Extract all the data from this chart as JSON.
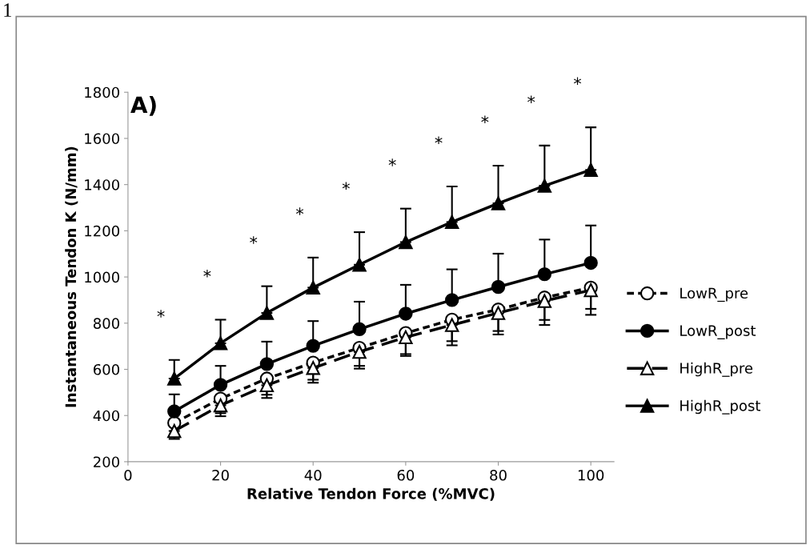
{
  "chart_data": {
    "type": "line",
    "xlabel": "Relative Tendon Force (%MVC)",
    "ylabel": "Instantaneous Tendon K (N/mm)",
    "x": [
      10,
      20,
      30,
      40,
      50,
      60,
      70,
      80,
      90,
      100
    ],
    "xlim": [
      0,
      105
    ],
    "xticks": [
      0,
      20,
      40,
      60,
      80,
      100
    ],
    "ylim": [
      200,
      1800
    ],
    "yticks": [
      200,
      400,
      600,
      800,
      1000,
      1200,
      1400,
      1600,
      1800
    ],
    "grid": false,
    "legend": "right",
    "series": [
      {
        "name": "LowR_pre",
        "color": "#000000",
        "marker": "circle",
        "line_style": "dotted",
        "values": [
          368,
          473,
          560,
          629,
          693,
          757,
          815,
          859,
          911,
          954
        ],
        "errors": [
          null,
          [
            410,
            473
          ],
          [
            490,
            560
          ],
          [
            555,
            629
          ],
          [
            615,
            693
          ],
          [
            666,
            757
          ],
          [
            722,
            815
          ],
          [
            766,
            859
          ],
          [
            814,
            911
          ],
          [
            862,
            954
          ]
        ]
      },
      {
        "name": "LowR_post",
        "color": "#000000",
        "marker": "circle",
        "line_style": "solid",
        "values": [
          418,
          533,
          623,
          702,
          774,
          841,
          900,
          957,
          1012,
          1061
        ],
        "errors": [
          [
            418,
            492
          ],
          [
            533,
            615
          ],
          [
            623,
            720
          ],
          [
            702,
            809
          ],
          [
            774,
            893
          ],
          [
            841,
            966
          ],
          [
            900,
            1033
          ],
          [
            957,
            1101
          ],
          [
            1012,
            1162
          ],
          [
            1061,
            1223
          ]
        ]
      },
      {
        "name": "HighR_pre",
        "color": "#000000",
        "marker": "triangle",
        "line_style": "dashed",
        "values": [
          333,
          444,
          531,
          606,
          676,
          739,
          792,
          844,
          896,
          943
        ],
        "errors": [
          [
            299,
            333
          ],
          [
            397,
            444
          ],
          [
            476,
            531
          ],
          [
            542,
            606
          ],
          [
            603,
            676
          ],
          [
            658,
            739
          ],
          [
            704,
            792
          ],
          [
            751,
            844
          ],
          [
            792,
            896
          ],
          [
            836,
            943
          ]
        ]
      },
      {
        "name": "HighR_post",
        "color": "#000000",
        "marker": "triangle",
        "line_style": "solid",
        "values": [
          560,
          713,
          844,
          954,
          1053,
          1151,
          1238,
          1319,
          1395,
          1464
        ],
        "errors": [
          [
            560,
            641
          ],
          [
            713,
            815
          ],
          [
            844,
            960
          ],
          [
            954,
            1084
          ],
          [
            1053,
            1194
          ],
          [
            1151,
            1296
          ],
          [
            1238,
            1392
          ],
          [
            1319,
            1482
          ],
          [
            1395,
            1569
          ],
          [
            1464,
            1648
          ]
        ]
      }
    ],
    "annotations": [
      "1",
      "A)",
      "*",
      "*",
      "*",
      "*",
      "*",
      "*",
      "*",
      "*",
      "*",
      "*"
    ]
  }
}
